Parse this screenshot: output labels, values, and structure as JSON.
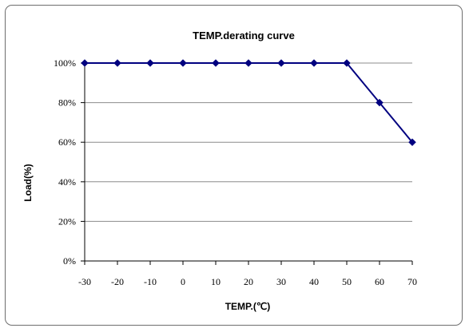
{
  "chart_data": {
    "type": "line",
    "title": "TEMP.derating curve",
    "xlabel": "TEMP.(℃)",
    "ylabel": "Load(%)",
    "x": [
      -30,
      -20,
      -10,
      0,
      10,
      20,
      30,
      40,
      50,
      60,
      70
    ],
    "series": [
      {
        "values": [
          100,
          100,
          100,
          100,
          100,
          100,
          100,
          100,
          100,
          80,
          60
        ]
      }
    ],
    "xlim": [
      -30,
      70
    ],
    "ylim": [
      0,
      100
    ],
    "x_tick_labels": [
      "-30",
      "-20",
      "-10",
      "0",
      "10",
      "20",
      "30",
      "40",
      "50",
      "60",
      "70"
    ],
    "y_tick_labels": [
      "0%",
      "20%",
      "40%",
      "60%",
      "80%",
      "100%"
    ],
    "y_ticks": [
      0,
      20,
      40,
      60,
      80,
      100
    ],
    "grid": "horizontal",
    "line_color": "#000080",
    "marker": "diamond"
  }
}
